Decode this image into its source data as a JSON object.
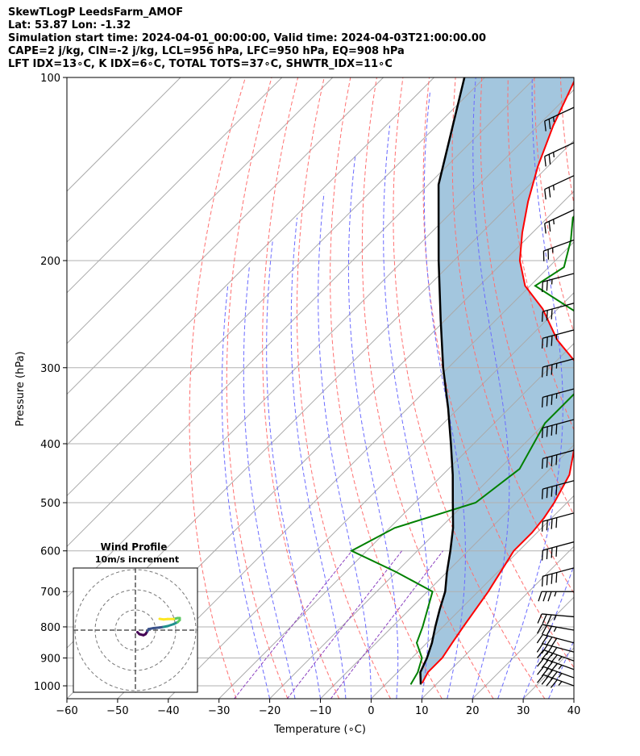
{
  "header": {
    "title": "SkewTLogP LeedsFarm_AMOF",
    "latlon": "Lat: 53.87   Lon: -1.32",
    "times": "Simulation start time: 2024-04-01_00:00:00, Valid time: 2024-04-03T21:00:00.00",
    "indices1": "CAPE=2 j/kg, CIN=-2 j/kg, LCL=956 hPa, LFC=950 hPa, EQ=908 hPa",
    "indices2": "LFT IDX=13∘C, K IDX=6∘C, TOTAL TOTS=37∘C, SHWTR_IDX=11∘C"
  },
  "colors": {
    "temperature": "#ff0000",
    "dewpoint": "#008000",
    "parcel": "#000000",
    "cape_fill": "#a3c6de",
    "isotherm": "#aaaaaa",
    "dry_adiabat": "#ff7070",
    "moist_adiabat": "#6b6bff",
    "mixing_ratio": "#8a3fbf"
  },
  "chart_data": {
    "type": "line",
    "subtype": "skew-T log-P",
    "xlabel": "Temperature (∘C)",
    "ylabel": "Pressure (hPa)",
    "xlim": [
      -60,
      40
    ],
    "ylim": [
      1050,
      100
    ],
    "y_scale": "log",
    "grid": true,
    "x_ticks": [
      -60,
      -50,
      -40,
      -30,
      -20,
      -10,
      0,
      10,
      20,
      30,
      40
    ],
    "y_ticks": [
      1000,
      900,
      800,
      700,
      600,
      500,
      400,
      300,
      200,
      100
    ],
    "series": [
      {
        "role": "temperature",
        "points": [
          [
            990,
            7
          ],
          [
            950,
            6
          ],
          [
            900,
            6
          ],
          [
            850,
            5
          ],
          [
            800,
            4
          ],
          [
            700,
            2
          ],
          [
            600,
            -1
          ],
          [
            560,
            -1
          ],
          [
            530,
            -1.5
          ],
          [
            500,
            -2.5
          ],
          [
            450,
            -5
          ],
          [
            400,
            -10
          ],
          [
            350,
            -16
          ],
          [
            300,
            -24
          ],
          [
            270,
            -34
          ],
          [
            240,
            -43
          ],
          [
            220,
            -51
          ],
          [
            200,
            -57
          ],
          [
            180,
            -62
          ],
          [
            160,
            -67
          ],
          [
            140,
            -72
          ],
          [
            120,
            -77
          ],
          [
            100,
            -82
          ]
        ]
      },
      {
        "role": "dewpoint",
        "points": [
          [
            995,
            5
          ],
          [
            950,
            4
          ],
          [
            900,
            2
          ],
          [
            850,
            -2
          ],
          [
            800,
            -4
          ],
          [
            700,
            -9
          ],
          [
            650,
            -20
          ],
          [
            600,
            -33
          ],
          [
            550,
            -29
          ],
          [
            500,
            -18
          ],
          [
            440,
            -16
          ],
          [
            370,
            -20
          ],
          [
            330,
            -20
          ],
          [
            300,
            -23
          ],
          [
            270,
            -29
          ],
          [
            250,
            -32
          ],
          [
            220,
            -49
          ],
          [
            205,
            -47
          ],
          [
            185,
            -51
          ],
          [
            170,
            -55
          ],
          [
            150,
            -56
          ],
          [
            120,
            -65
          ],
          [
            100,
            -72
          ]
        ]
      },
      {
        "role": "parcel",
        "points": [
          [
            995,
            7
          ],
          [
            950,
            4.5
          ],
          [
            900,
            3
          ],
          [
            850,
            1
          ],
          [
            800,
            -1.5
          ],
          [
            750,
            -4
          ],
          [
            700,
            -6.5
          ],
          [
            650,
            -10
          ],
          [
            600,
            -13.5
          ],
          [
            550,
            -17.5
          ],
          [
            500,
            -22.5
          ],
          [
            450,
            -28
          ],
          [
            400,
            -34.5
          ],
          [
            350,
            -42
          ],
          [
            300,
            -51
          ],
          [
            250,
            -61
          ],
          [
            200,
            -73
          ],
          [
            150,
            -88
          ],
          [
            100,
            -104
          ]
        ]
      }
    ]
  },
  "wind_profile": {
    "title": "Wind Profile",
    "subtitle": "10m/s increment",
    "hodograph": [
      [
        1,
        -1
      ],
      [
        2,
        -2
      ],
      [
        4,
        -2.5
      ],
      [
        5,
        -2
      ],
      [
        6,
        -0.5
      ],
      [
        6.5,
        0.5
      ],
      [
        9,
        1
      ],
      [
        12,
        1.3
      ],
      [
        14,
        1.6
      ],
      [
        16,
        2
      ],
      [
        19,
        3
      ],
      [
        21,
        4
      ],
      [
        22,
        5
      ],
      [
        22,
        6
      ],
      [
        21,
        6
      ],
      [
        19,
        5.5
      ],
      [
        16,
        5.5
      ],
      [
        14,
        5.3
      ],
      [
        12,
        5.6
      ]
    ]
  },
  "wind_barbs": [
    {
      "p": 1000,
      "speed": 45,
      "dir": 290
    },
    {
      "p": 970,
      "speed": 45,
      "dir": 290
    },
    {
      "p": 940,
      "speed": 45,
      "dir": 290
    },
    {
      "p": 910,
      "speed": 45,
      "dir": 290
    },
    {
      "p": 880,
      "speed": 40,
      "dir": 285
    },
    {
      "p": 850,
      "speed": 40,
      "dir": 285
    },
    {
      "p": 810,
      "speed": 35,
      "dir": 280
    },
    {
      "p": 770,
      "speed": 35,
      "dir": 275
    },
    {
      "p": 700,
      "speed": 35,
      "dir": 270
    },
    {
      "p": 640,
      "speed": 40,
      "dir": 255
    },
    {
      "p": 580,
      "speed": 40,
      "dir": 255
    },
    {
      "p": 520,
      "speed": 40,
      "dir": 255
    },
    {
      "p": 460,
      "speed": 40,
      "dir": 255
    },
    {
      "p": 410,
      "speed": 40,
      "dir": 255
    },
    {
      "p": 365,
      "speed": 40,
      "dir": 255
    },
    {
      "p": 325,
      "speed": 35,
      "dir": 255
    },
    {
      "p": 290,
      "speed": 35,
      "dir": 255
    },
    {
      "p": 260,
      "speed": 35,
      "dir": 255
    },
    {
      "p": 235,
      "speed": 30,
      "dir": 255
    },
    {
      "p": 210,
      "speed": 25,
      "dir": 255
    },
    {
      "p": 185,
      "speed": 25,
      "dir": 250
    },
    {
      "p": 165,
      "speed": 25,
      "dir": 245
    },
    {
      "p": 145,
      "speed": 25,
      "dir": 245
    },
    {
      "p": 128,
      "speed": 25,
      "dir": 245
    },
    {
      "p": 112,
      "speed": 25,
      "dir": 245
    }
  ]
}
